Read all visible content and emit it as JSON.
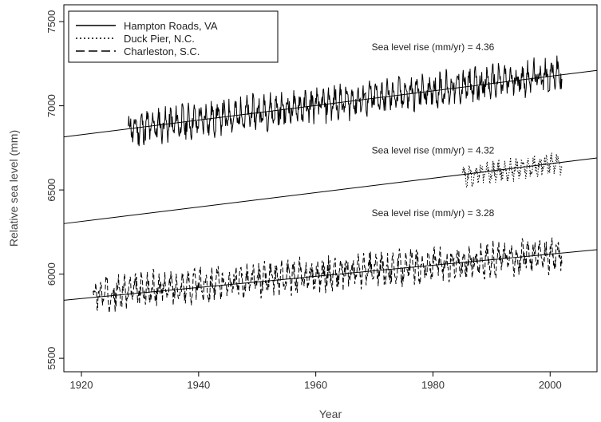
{
  "chart_data": {
    "type": "line",
    "title": "",
    "xlabel": "Year",
    "ylabel": "Relative sea level (mm)",
    "xlim": [
      1917,
      2008
    ],
    "ylim": [
      5420,
      7600
    ],
    "xticks": [
      1920,
      1940,
      1960,
      1980,
      2000
    ],
    "yticks": [
      5500,
      6000,
      6500,
      7000,
      7500
    ],
    "grid": false,
    "legend_position": "top-left",
    "legend": [
      {
        "label": "Hampton Roads, VA",
        "style": "solid"
      },
      {
        "label": "Duck Pier, N.C.",
        "style": "dotted"
      },
      {
        "label": "Charleston, S.C.",
        "style": "dashed"
      }
    ],
    "series": [
      {
        "name": "Hampton Roads, VA",
        "style": "solid",
        "x_range": [
          1928,
          2002
        ],
        "y_start": 6860,
        "y_end": 7190,
        "amplitude": 110
      },
      {
        "name": "Duck Pier, N.C.",
        "style": "dotted",
        "x_range": [
          1985,
          2002
        ],
        "y_start": 6580,
        "y_end": 6660,
        "amplitude": 70
      },
      {
        "name": "Charleston, S.C.",
        "style": "dashed",
        "x_range": [
          1922,
          2002
        ],
        "y_start": 5880,
        "y_end": 6120,
        "amplitude": 110
      }
    ],
    "trend_lines": [
      {
        "x": [
          1917,
          2008
        ],
        "y": [
          6815,
          7210
        ]
      },
      {
        "x": [
          1917,
          2008
        ],
        "y": [
          6300,
          6690
        ]
      },
      {
        "x": [
          1917,
          2008
        ],
        "y": [
          5845,
          6145
        ]
      }
    ],
    "annotations": [
      {
        "text": "Sea level rise (mm/yr) = 4.36",
        "x": 1980,
        "y": 7330
      },
      {
        "text": "Sea level rise (mm/yr) = 4.32",
        "x": 1980,
        "y": 6715
      },
      {
        "text": "Sea level rise (mm/yr) = 3.28",
        "x": 1980,
        "y": 6345
      }
    ]
  }
}
